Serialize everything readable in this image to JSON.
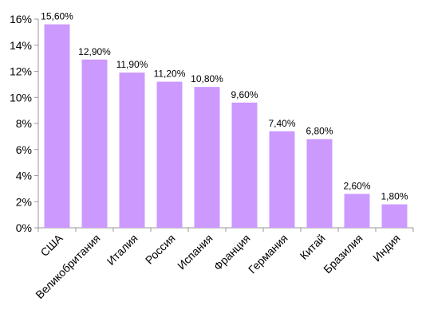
{
  "chart_data": {
    "type": "bar",
    "title": "",
    "xlabel": "",
    "ylabel": "",
    "categories": [
      "США",
      "Великобритания",
      "Италия",
      "Россия",
      "Испания",
      "Франция",
      "Германия",
      "Китай",
      "Бразилия",
      "Индия"
    ],
    "values": [
      15.6,
      12.9,
      11.9,
      11.2,
      10.8,
      9.6,
      7.4,
      6.8,
      2.6,
      1.8
    ],
    "data_labels": [
      "15,60%",
      "12,90%",
      "11,90%",
      "11,20%",
      "10,80%",
      "9,60%",
      "7,40%",
      "6,80%",
      "2,60%",
      "1,80%"
    ],
    "ylim": [
      0,
      16
    ],
    "y_ticks": [
      0,
      2,
      4,
      6,
      8,
      10,
      12,
      14,
      16
    ],
    "y_tick_labels": [
      "0%",
      "2%",
      "4%",
      "6%",
      "8%",
      "10%",
      "12%",
      "14%",
      "16%"
    ],
    "grid": false,
    "legend": "none",
    "bar_color": "#cc99ff",
    "axis_color": "#999999"
  }
}
